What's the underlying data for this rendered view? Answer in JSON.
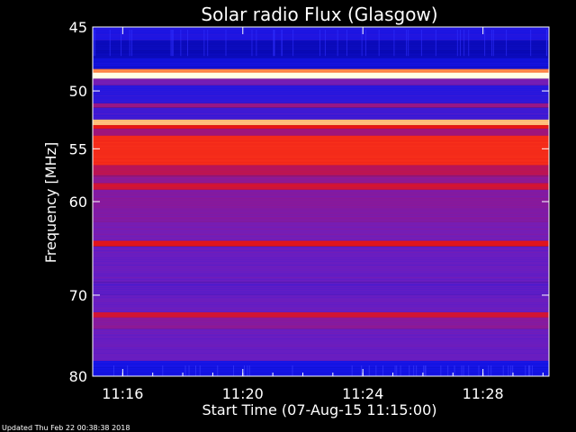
{
  "chart_data": {
    "type": "heatmap",
    "title": "Solar radio Flux (Glasgow)",
    "xlabel": "Start Time (07-Aug-15 11:15:00)",
    "ylabel": "Frequency [MHz]",
    "x_tick_labels": [
      "11:16",
      "11:20",
      "11:24",
      "11:28"
    ],
    "x_tick_minutes": [
      16,
      20,
      24,
      28
    ],
    "xlim_minutes": [
      15,
      30.2
    ],
    "y_tick_labels": [
      "45",
      "50",
      "55",
      "60",
      "70",
      "80"
    ],
    "y_tick_values": [
      45,
      50,
      55,
      60,
      70,
      80
    ],
    "ylim": [
      45,
      80
    ],
    "y_scale": "log",
    "colormap": "blue-purple-red-yellow-white",
    "bands": [
      {
        "f0": 45.0,
        "f1": 46.0,
        "level": 0.14
      },
      {
        "f0": 46.0,
        "f1": 47.3,
        "level": 0.06
      },
      {
        "f0": 47.3,
        "f1": 48.2,
        "level": 0.1
      },
      {
        "f0": 48.2,
        "f1": 48.5,
        "level": 0.8
      },
      {
        "f0": 48.5,
        "f1": 49.0,
        "level": 1.0
      },
      {
        "f0": 49.0,
        "f1": 49.5,
        "level": 0.3
      },
      {
        "f0": 49.5,
        "f1": 51.0,
        "level": 0.16
      },
      {
        "f0": 51.0,
        "f1": 51.4,
        "level": 0.38
      },
      {
        "f0": 51.4,
        "f1": 52.4,
        "level": 0.2
      },
      {
        "f0": 52.4,
        "f1": 52.9,
        "level": 0.88
      },
      {
        "f0": 52.9,
        "f1": 53.2,
        "level": 0.6
      },
      {
        "f0": 53.2,
        "f1": 53.8,
        "level": 0.4
      },
      {
        "f0": 53.8,
        "f1": 56.5,
        "level": 0.66
      },
      {
        "f0": 56.5,
        "f1": 57.5,
        "level": 0.46
      },
      {
        "f0": 57.5,
        "f1": 58.2,
        "level": 0.36
      },
      {
        "f0": 58.2,
        "f1": 58.8,
        "level": 0.52
      },
      {
        "f0": 58.8,
        "f1": 62.0,
        "level": 0.33
      },
      {
        "f0": 62.0,
        "f1": 64.0,
        "level": 0.3
      },
      {
        "f0": 64.0,
        "f1": 64.6,
        "level": 0.56
      },
      {
        "f0": 64.6,
        "f1": 68.5,
        "level": 0.27
      },
      {
        "f0": 68.5,
        "f1": 70.0,
        "level": 0.24
      },
      {
        "f0": 70.0,
        "f1": 72.0,
        "level": 0.27
      },
      {
        "f0": 72.0,
        "f1": 72.6,
        "level": 0.52
      },
      {
        "f0": 72.6,
        "f1": 74.0,
        "level": 0.34
      },
      {
        "f0": 74.0,
        "f1": 78.0,
        "level": 0.27
      },
      {
        "f0": 78.0,
        "f1": 80.0,
        "level": 0.12
      }
    ]
  },
  "footer": {
    "updated": "Updated Thu Feb 22 00:38:38 2018"
  },
  "colors": {
    "background": "#000000",
    "text": "#ffffff"
  }
}
